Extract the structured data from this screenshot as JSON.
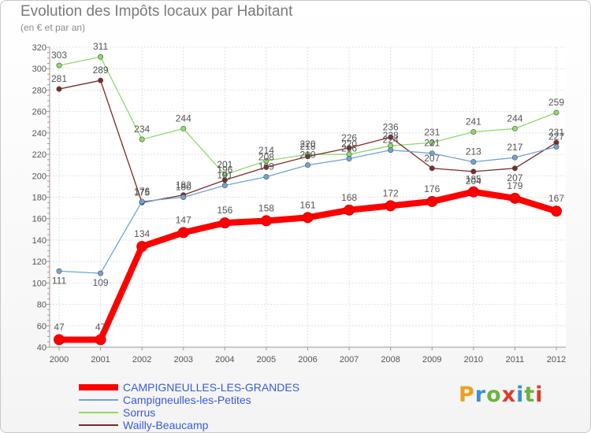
{
  "title": "Evolution des Impôts locaux par Habitant",
  "subtitle": "(en € et par an)",
  "brand": "Proxiti",
  "chart_data": {
    "type": "line",
    "title": "Evolution des Impôts locaux par Habitant",
    "subtitle": "(en € et par an)",
    "xlabel": "",
    "ylabel": "",
    "x": [
      2000,
      2001,
      2002,
      2003,
      2004,
      2005,
      2006,
      2007,
      2008,
      2009,
      2010,
      2011,
      2012
    ],
    "ylim": [
      40,
      320
    ],
    "yticks": [
      40,
      60,
      80,
      100,
      120,
      140,
      160,
      180,
      200,
      220,
      240,
      260,
      280,
      300,
      320
    ],
    "grid": true,
    "legend_position": "bottom-left",
    "series": [
      {
        "name": "Sorrus",
        "color": "#8ed96a",
        "values": [
          303,
          311,
          234,
          244,
          201,
          214,
          220,
          220,
          228,
          231,
          241,
          244,
          259
        ]
      },
      {
        "name": "Wailly-Beaucamp",
        "color": "#7a2a2a",
        "values": [
          281,
          289,
          175,
          182,
          196,
          208,
          218,
          226,
          236,
          207,
          204,
          207,
          231
        ]
      },
      {
        "name": "Campigneulles-les-Petites",
        "color": "#6fa4d4",
        "values": [
          111,
          109,
          176,
          180,
          191,
          199,
          210,
          216,
          224,
          221,
          213,
          217,
          227
        ]
      },
      {
        "name": "CAMPIGNEULLES-LES-GRANDES",
        "color": "#ff0000",
        "values": [
          47,
          47,
          134,
          147,
          156,
          158,
          161,
          168,
          172,
          176,
          185,
          179,
          167
        ]
      }
    ],
    "legend": [
      "CAMPIGNEULLES-LES-GRANDES",
      "Campigneulles-les-Petites",
      "Sorrus",
      "Wailly-Beaucamp"
    ]
  }
}
